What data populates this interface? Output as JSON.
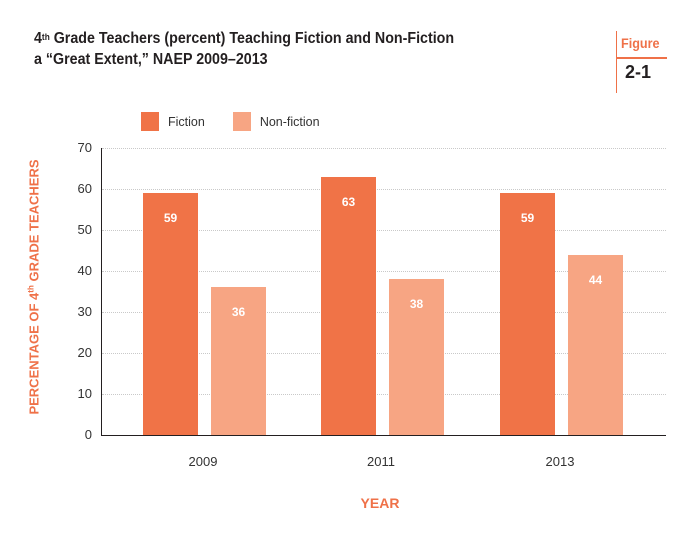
{
  "header": {
    "title_line1_prefix": "4",
    "title_line1_sup": "th",
    "title_line1_rest": " Grade Teachers (percent) Teaching Fiction and Non-Fiction",
    "title_line2": "a “Great Extent,” NAEP 2009–2013",
    "figure_label": "Figure",
    "figure_number": "2-1"
  },
  "colors": {
    "fiction": "#f07347",
    "nonfiction": "#f7a583",
    "accent": "#ef7148"
  },
  "legend": [
    {
      "label": "Fiction",
      "color": "#f07347"
    },
    {
      "label": "Non-fiction",
      "color": "#f7a583"
    }
  ],
  "axes": {
    "y_label_prefix": "PERCENTAGE OF 4",
    "y_label_sup": "th",
    "y_label_suffix": " GRADE TEACHERS",
    "x_label": "YEAR",
    "y_ticks": [
      "0",
      "10",
      "20",
      "30",
      "40",
      "50",
      "60",
      "70"
    ]
  },
  "chart_data": {
    "type": "bar",
    "title": "4th Grade Teachers (percent) Teaching Fiction and Non-Fiction a “Great Extent,” NAEP 2009–2013",
    "categories": [
      "2009",
      "2011",
      "2013"
    ],
    "series": [
      {
        "name": "Fiction",
        "values": [
          59,
          63,
          59
        ]
      },
      {
        "name": "Non-fiction",
        "values": [
          36,
          38,
          44
        ]
      }
    ],
    "xlabel": "YEAR",
    "ylabel": "PERCENTAGE OF 4th GRADE TEACHERS",
    "ylim": [
      0,
      70
    ],
    "yticks": [
      0,
      10,
      20,
      30,
      40,
      50,
      60,
      70
    ],
    "grid": true,
    "legend_position": "top"
  }
}
